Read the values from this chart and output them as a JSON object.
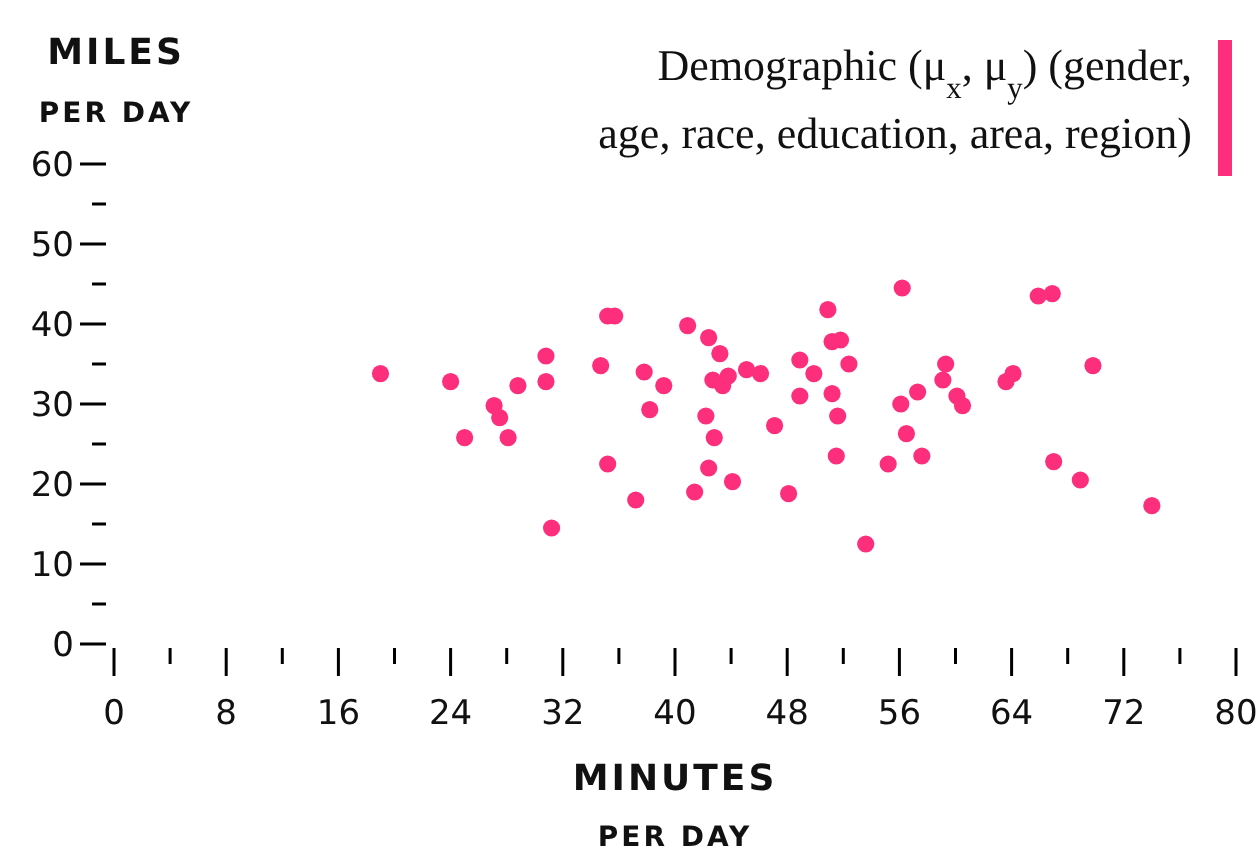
{
  "chart_data": {
    "type": "scatter",
    "xlabel": "MINUTES\nPER DAY",
    "ylabel": "MILES\nPER DAY",
    "xlim": [
      0,
      80
    ],
    "xticks": [
      0,
      {
        "value": 4,
        "label": null
      },
      8,
      {
        "value": 12,
        "label": null
      },
      16,
      {
        "value": 20,
        "label": null
      },
      24,
      {
        "value": 28,
        "label": null
      },
      32,
      {
        "value": 36,
        "label": null
      },
      40,
      {
        "value": 44,
        "label": null
      },
      48,
      {
        "value": 52,
        "label": null
      },
      56,
      {
        "value": 60,
        "label": null
      },
      64,
      {
        "value": 68,
        "label": null
      },
      72,
      {
        "value": 76,
        "label": null
      },
      80
    ],
    "ylim": [
      0,
      60
    ],
    "yticks": [
      0,
      {
        "value": 5,
        "label": null
      },
      10,
      {
        "value": 15,
        "label": null
      },
      20,
      {
        "value": 25,
        "label": null
      },
      30,
      {
        "value": 35,
        "label": null
      },
      40,
      {
        "value": 45,
        "label": null
      },
      50,
      {
        "value": 55,
        "label": null
      },
      60
    ],
    "grid": false,
    "legend": "top right",
    "marker": "circle",
    "series": [
      {
        "name": "Demographic (μ$_{x}$, μ$_{y}$) (gender, age, race, education, area, region)",
        "color": "#fd2e7b",
        "x": [
          19.0,
          24.0,
          25.0,
          27.1,
          27.5,
          28.1,
          28.8,
          30.8,
          30.8,
          31.2,
          34.7,
          35.2,
          35.7,
          35.2,
          37.2,
          37.8,
          38.2,
          39.2,
          40.9,
          42.4,
          43.2,
          42.7,
          43.4,
          43.8,
          42.2,
          42.8,
          42.4,
          41.4,
          44.1,
          45.1,
          46.1,
          47.1,
          48.1,
          48.9,
          49.9,
          48.9,
          50.9,
          51.2,
          51.8,
          52.4,
          51.2,
          51.6,
          51.5,
          53.6,
          55.2,
          56.2,
          56.1,
          56.5,
          57.6,
          57.3,
          59.1,
          59.3,
          60.1,
          60.5,
          63.6,
          64.1,
          65.9,
          66.9,
          67.0,
          68.9,
          69.8,
          74.0
        ],
        "values": [
          33.8,
          32.8,
          25.8,
          29.8,
          28.3,
          25.8,
          32.3,
          36.0,
          32.8,
          14.5,
          34.8,
          41.0,
          41.0,
          22.5,
          18.0,
          34.0,
          29.3,
          32.3,
          39.8,
          38.3,
          36.3,
          33.0,
          32.3,
          33.5,
          28.5,
          25.8,
          22.0,
          19.0,
          20.3,
          34.3,
          33.8,
          27.3,
          18.8,
          35.5,
          33.8,
          31.0,
          41.8,
          37.8,
          38.0,
          35.0,
          31.3,
          28.5,
          23.5,
          12.5,
          22.5,
          44.5,
          30.0,
          26.3,
          23.5,
          31.5,
          33.0,
          35.0,
          31.0,
          29.8,
          32.8,
          33.8,
          43.5,
          43.8,
          22.8,
          20.5,
          34.8,
          17.3
        ]
      }
    ]
  }
}
